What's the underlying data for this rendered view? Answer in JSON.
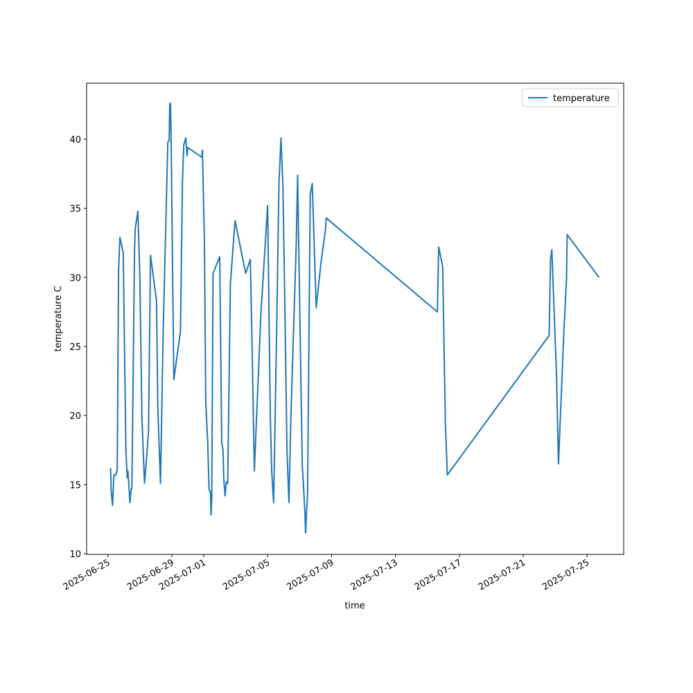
{
  "chart_data": {
    "type": "line",
    "x_label": "time",
    "y_label": "temperature C",
    "x": [
      "2025-06-25 04:00",
      "2025-06-25 05:00",
      "2025-06-25 07:00",
      "2025-06-25 09:00",
      "2025-06-25 12:00",
      "2025-06-25 14:00",
      "2025-06-25 16:00",
      "2025-06-25 18:00",
      "2025-06-25 23:00",
      "2025-06-26 03:00",
      "2025-06-26 05:00",
      "2025-06-26 06:00",
      "2025-06-26 08:00",
      "2025-06-26 09:00",
      "2025-06-26 11:00",
      "2025-06-26 12:00",
      "2025-06-26 16:00",
      "2025-06-26 17:00",
      "2025-06-26 21:00",
      "2025-06-27 00:00",
      "2025-06-27 03:00",
      "2025-06-27 05:00",
      "2025-06-27 07:00",
      "2025-06-27 11:00",
      "2025-06-27 13:00",
      "2025-06-27 16:00",
      "2025-06-28 01:00",
      "2025-06-28 03:00",
      "2025-06-28 07:00",
      "2025-06-28 11:00",
      "2025-06-28 18:00",
      "2025-06-28 20:00",
      "2025-06-28 21:00",
      "2025-06-28 22:00",
      "2025-06-28 23:00",
      "2025-06-29 03:00",
      "2025-06-29 13:00",
      "2025-06-29 16:00",
      "2025-06-29 18:00",
      "2025-06-29 21:00",
      "2025-06-29 23:00",
      "2025-06-30 00:00",
      "2025-06-30 21:00",
      "2025-06-30 22:00",
      "2025-07-01 01:00",
      "2025-07-01 03:00",
      "2025-07-01 06:00",
      "2025-07-01 08:00",
      "2025-07-01 10:00",
      "2025-07-01 11:00",
      "2025-07-01 12:00",
      "2025-07-01 14:00",
      "2025-07-02 00:00",
      "2025-07-02 03:00",
      "2025-07-02 05:00",
      "2025-07-02 06:00",
      "2025-07-02 08:00",
      "2025-07-02 10:00",
      "2025-07-02 12:00",
      "2025-07-02 16:00",
      "2025-07-02 23:00",
      "2025-07-03 15:00",
      "2025-07-03 22:00",
      "2025-07-04 01:00",
      "2025-07-04 04:00",
      "2025-07-04 14:00",
      "2025-07-05 00:00",
      "2025-07-05 04:00",
      "2025-07-05 06:00",
      "2025-07-05 09:00",
      "2025-07-05 14:00",
      "2025-07-05 17:00",
      "2025-07-05 20:00",
      "2025-07-05 23:00",
      "2025-07-06 02:00",
      "2025-07-06 05:00",
      "2025-07-06 08:00",
      "2025-07-06 11:00",
      "2025-07-06 19:00",
      "2025-07-06 21:00",
      "2025-07-07 00:00",
      "2025-07-07 04:00",
      "2025-07-07 08:00",
      "2025-07-07 09:00",
      "2025-07-07 12:00",
      "2025-07-07 16:00",
      "2025-07-07 19:00",
      "2025-07-08 01:00",
      "2025-07-08 08:00",
      "2025-07-08 15:00",
      "2025-07-08 16:00",
      "2025-07-15 15:00",
      "2025-07-15 17:00",
      "2025-07-15 23:00",
      "2025-07-16 03:00",
      "2025-07-16 06:00",
      "2025-07-22 15:00",
      "2025-07-22 17:00",
      "2025-07-22 19:00",
      "2025-07-23 02:00",
      "2025-07-23 05:00",
      "2025-07-23 13:00",
      "2025-07-23 17:00",
      "2025-07-23 18:00",
      "2025-07-25 18:00"
    ],
    "series": [
      {
        "name": "temperature",
        "color": "#1f77b4",
        "values": [
          16.2,
          14.5,
          13.5,
          15.7,
          15.7,
          16.1,
          30.5,
          32.9,
          31.8,
          17.5,
          15.5,
          16,
          14.5,
          13.7,
          14.7,
          14.7,
          32,
          33.5,
          34.8,
          30,
          20,
          17.5,
          15.1,
          17.5,
          18.9,
          31.6,
          28.3,
          20.5,
          15.1,
          26,
          39.8,
          39.9,
          42.6,
          42.6,
          40,
          22.6,
          26.1,
          37,
          39.6,
          40.1,
          38.8,
          39.4,
          38.7,
          39.2,
          32.5,
          21,
          18,
          14.6,
          14.5,
          12.8,
          14,
          30.3,
          31.5,
          18,
          17.5,
          15.5,
          14.2,
          15.2,
          15.1,
          29.5,
          34.1,
          30.3,
          31.3,
          24,
          16,
          27.5,
          35.2,
          20,
          16,
          13.7,
          27.5,
          36.8,
          40.1,
          36.5,
          27.5,
          17.5,
          13.7,
          20,
          32.5,
          37.4,
          28.5,
          16.5,
          13,
          11.5,
          14.4,
          36,
          36.8,
          27.8,
          31,
          33.5,
          34.3,
          27.5,
          32.2,
          30.8,
          19.5,
          15.7,
          25.8,
          31.3,
          32,
          23,
          16.5,
          26,
          29.8,
          33.1,
          30
        ]
      }
    ],
    "xlim": [
      "2025-06-23 16:00",
      "2025-07-27 07:00"
    ],
    "xticks": [
      "2025-06-25",
      "2025-06-29",
      "2025-07-01",
      "2025-07-05",
      "2025-07-09",
      "2025-07-13",
      "2025-07-17",
      "2025-07-21",
      "2025-07-25"
    ],
    "ylim": [
      9.95,
      44.06
    ],
    "yticks": [
      10,
      15,
      20,
      25,
      30,
      35,
      40
    ],
    "grid": false,
    "legend": "upper right"
  }
}
